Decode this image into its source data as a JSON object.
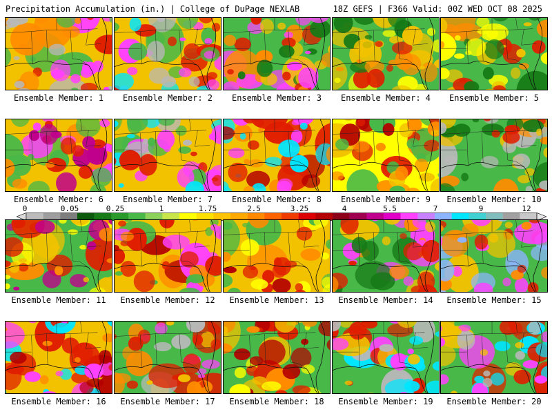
{
  "header": {
    "left_title": "Precipitation Accumulation (in.) | College of DuPage NEXLAB",
    "right_title": "18Z GEFS | F366 Valid: 00Z WED OCT 08 2025"
  },
  "colorbar": {
    "tick_labels": [
      "0",
      "0.05",
      "0.25",
      "1",
      "1.75",
      "2.5",
      "3.25",
      "4",
      "5.5",
      "7",
      "9",
      "12"
    ],
    "colors": [
      "#dcdcdc",
      "#bcbcbc",
      "#9e9e9e",
      "#7e7e7e",
      "#0c5a0c",
      "#167a16",
      "#2a9a2a",
      "#48b848",
      "#8cd25a",
      "#c8e64a",
      "#ffff00",
      "#ffe000",
      "#ffc400",
      "#ffa800",
      "#ff8a00",
      "#ff6400",
      "#f03c00",
      "#dc0000",
      "#b40000",
      "#8c0018",
      "#a00050",
      "#c0008c",
      "#e000c8",
      "#ff40ff",
      "#c880ff",
      "#8cb4ff",
      "#00e6ff",
      "#40d2d2",
      "#80bebe",
      "#a0a0a0",
      "#c8c8c8",
      "#e6e6e6"
    ]
  },
  "members": [
    {
      "label": "Ensemble Member: 1",
      "palette": [
        "#f2c200",
        "#ff8c00",
        "#e01e00",
        "#48b848",
        "#ff40ff",
        "#b8b8b8"
      ]
    },
    {
      "label": "Ensemble Member: 2",
      "palette": [
        "#f2c200",
        "#e01e00",
        "#ff40ff",
        "#00e6ff",
        "#48b848",
        "#b8b8b8"
      ]
    },
    {
      "label": "Ensemble Member: 3",
      "palette": [
        "#48b848",
        "#f2c200",
        "#ff8c00",
        "#e01e00",
        "#167a16",
        "#ff40ff"
      ]
    },
    {
      "label": "Ensemble Member: 4",
      "palette": [
        "#48b848",
        "#f2c200",
        "#ff8c00",
        "#e01e00",
        "#167a16",
        "#ffff00"
      ]
    },
    {
      "label": "Ensemble Member: 5",
      "palette": [
        "#48b848",
        "#ffff00",
        "#f2c200",
        "#ff8c00",
        "#167a16",
        "#e01e00"
      ]
    },
    {
      "label": "Ensemble Member: 6",
      "palette": [
        "#f2c200",
        "#ff8c00",
        "#e01e00",
        "#ff40ff",
        "#48b848",
        "#c0008c"
      ]
    },
    {
      "label": "Ensemble Member: 7",
      "palette": [
        "#f2c200",
        "#e01e00",
        "#ff40ff",
        "#00e6ff",
        "#48b848",
        "#b8b8b8"
      ]
    },
    {
      "label": "Ensemble Member: 8",
      "palette": [
        "#f2c200",
        "#ff8c00",
        "#e01e00",
        "#ff40ff",
        "#00e6ff",
        "#b40000"
      ]
    },
    {
      "label": "Ensemble Member: 9",
      "palette": [
        "#ffff00",
        "#f2c200",
        "#ff8c00",
        "#e01e00",
        "#48b848",
        "#b40000"
      ]
    },
    {
      "label": "Ensemble Member: 10",
      "palette": [
        "#48b848",
        "#f2c200",
        "#ff8c00",
        "#e01e00",
        "#167a16",
        "#b8b8b8"
      ]
    },
    {
      "label": "Ensemble Member: 11",
      "palette": [
        "#48b848",
        "#f2c200",
        "#ff8c00",
        "#e01e00",
        "#ffff00",
        "#c0008c"
      ]
    },
    {
      "label": "Ensemble Member: 12",
      "palette": [
        "#f2c200",
        "#ff8c00",
        "#e01e00",
        "#ff40ff",
        "#48b848",
        "#b40000"
      ]
    },
    {
      "label": "Ensemble Member: 13",
      "palette": [
        "#f2c200",
        "#ff8c00",
        "#e01e00",
        "#ffff00",
        "#48b848",
        "#b40000"
      ]
    },
    {
      "label": "Ensemble Member: 14",
      "palette": [
        "#48b848",
        "#f2c200",
        "#ff8c00",
        "#e01e00",
        "#ff40ff",
        "#167a16"
      ]
    },
    {
      "label": "Ensemble Member: 15",
      "palette": [
        "#48b848",
        "#f2c200",
        "#ff8c00",
        "#e01e00",
        "#ff40ff",
        "#8cb4ff"
      ]
    },
    {
      "label": "Ensemble Member: 16",
      "palette": [
        "#f2c200",
        "#ff8c00",
        "#e01e00",
        "#ff40ff",
        "#b40000",
        "#00e6ff"
      ]
    },
    {
      "label": "Ensemble Member: 17",
      "palette": [
        "#48b848",
        "#f2c200",
        "#ff8c00",
        "#e01e00",
        "#ff40ff",
        "#b8b8b8"
      ]
    },
    {
      "label": "Ensemble Member: 18",
      "palette": [
        "#48b848",
        "#f2c200",
        "#ff8c00",
        "#e01e00",
        "#ffff00",
        "#b40000"
      ]
    },
    {
      "label": "Ensemble Member: 19",
      "palette": [
        "#48b848",
        "#f2c200",
        "#e01e00",
        "#ff40ff",
        "#00e6ff",
        "#b8b8b8"
      ]
    },
    {
      "label": "Ensemble Member: 20",
      "palette": [
        "#48b848",
        "#f2c200",
        "#e01e00",
        "#ff40ff",
        "#00e6ff",
        "#b8b8b8"
      ]
    }
  ]
}
